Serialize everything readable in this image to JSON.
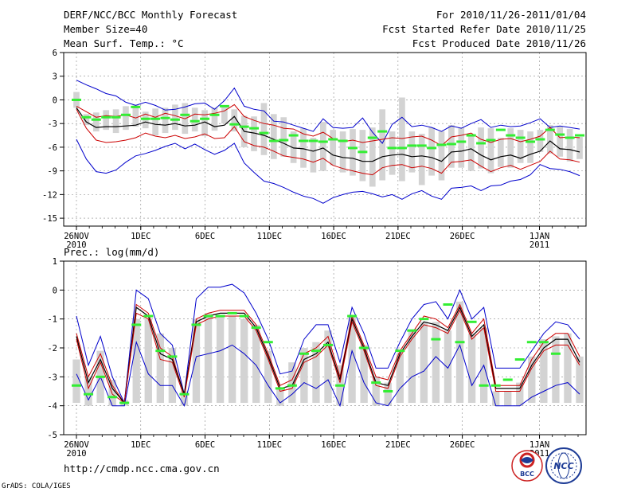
{
  "header": {
    "title": "DERF/NCC/BCC Monthly Forecast",
    "member": "Member Size=40",
    "variable": "Mean Surf. Temp.: °C",
    "period": "For 2010/11/26-2011/01/04",
    "started": "Fcst Started Refer Date 2010/11/25",
    "produced": "Fcst Produced Date 2010/11/26"
  },
  "footer": {
    "url": "http://cmdp.ncc.cma.gov.cn",
    "credit": "GrADS: COLA/IGES",
    "logo_bcc": "BCC",
    "logo_ncc": "NCC"
  },
  "colors": {
    "envelope": "#0000cc",
    "spread": "#cc0000",
    "mean": "#000000",
    "bars": "#d3d3d3",
    "marker": "#33ee33"
  },
  "chart_data": [
    {
      "type": "line",
      "title": "Mean Surf. Temp.: °C",
      "ylim": [
        -16,
        6
      ],
      "yticks": [
        6,
        3,
        0,
        -3,
        -6,
        -9,
        -12,
        -15
      ],
      "xlabels": [
        "26NOV",
        "1DEC",
        "6DEC",
        "11DEC",
        "16DEC",
        "21DEC",
        "26DEC",
        "1JAN"
      ],
      "xlabel_years": [
        "2010",
        "",
        "",
        "",
        "",
        "",
        "",
        "2011"
      ],
      "x_ticks_days": 40,
      "series": [
        {
          "name": "max",
          "values": [
            2.5,
            1.9,
            1.4,
            0.8,
            0.5,
            -0.3,
            -0.7,
            -0.3,
            -0.7,
            -1.3,
            -1.2,
            -0.9,
            -0.5,
            -0.4,
            -1.2,
            -0.1,
            1.5,
            -0.8,
            -1.2,
            -1.4,
            -2.7,
            -2.8,
            -3.2,
            -3.6,
            -4.0,
            -2.4,
            -3.5,
            -3.6,
            -3.5,
            -2.3,
            -4.1,
            -5.5,
            -3.1,
            -2.2,
            -3.4,
            -3.2,
            -3.5,
            -4.0,
            -3.3,
            -3.6,
            -3.0,
            -2.5,
            -3.5,
            -3.2,
            -3.4,
            -3.3,
            -2.9,
            -2.4,
            -3.5,
            -3.3,
            -3.5,
            -3.7
          ]
        },
        {
          "name": "upper",
          "values": [
            -0.8,
            -1.5,
            -2.2,
            -2.0,
            -2.1,
            -1.9,
            -2.3,
            -1.8,
            -2.2,
            -1.7,
            -2.0,
            -2.4,
            -1.8,
            -1.9,
            -1.7,
            -1.4,
            -0.6,
            -2.1,
            -2.6,
            -3.0,
            -3.2,
            -3.6,
            -3.7,
            -4.3,
            -4.6,
            -4.1,
            -4.9,
            -5.3,
            -5.1,
            -5.4,
            -5.2,
            -5.0,
            -4.8,
            -4.9,
            -4.7,
            -4.6,
            -5.1,
            -5.8,
            -4.7,
            -4.5,
            -4.2,
            -5.0,
            -5.4,
            -5.0,
            -4.9,
            -5.3,
            -5.0,
            -4.6,
            -3.5,
            -4.8,
            -4.7,
            -4.8
          ]
        },
        {
          "name": "mean",
          "values": [
            -1.0,
            -2.8,
            -3.5,
            -3.4,
            -3.4,
            -3.3,
            -3.2,
            -2.8,
            -3.1,
            -3.2,
            -3.0,
            -3.3,
            -3.2,
            -2.8,
            -3.4,
            -3.2,
            -2.1,
            -4.0,
            -4.2,
            -4.5,
            -5.0,
            -5.5,
            -6.1,
            -6.2,
            -6.5,
            -6.1,
            -7.0,
            -7.3,
            -7.4,
            -7.8,
            -7.8,
            -7.2,
            -7.0,
            -6.9,
            -7.2,
            -7.1,
            -7.3,
            -7.8,
            -6.6,
            -6.5,
            -6.2,
            -7.0,
            -7.6,
            -7.2,
            -7.0,
            -7.4,
            -6.9,
            -6.5,
            -5.2,
            -6.2,
            -6.3,
            -6.6
          ]
        },
        {
          "name": "lower",
          "values": [
            -1.2,
            -3.6,
            -5.1,
            -5.4,
            -5.3,
            -5.1,
            -4.8,
            -4.2,
            -4.6,
            -4.8,
            -4.5,
            -4.9,
            -4.7,
            -4.3,
            -4.9,
            -4.8,
            -3.4,
            -5.3,
            -5.8,
            -6.0,
            -6.5,
            -7.1,
            -7.3,
            -7.5,
            -7.9,
            -7.4,
            -8.3,
            -8.7,
            -9.0,
            -9.3,
            -9.5,
            -8.6,
            -8.3,
            -8.2,
            -8.6,
            -8.4,
            -8.7,
            -9.3,
            -7.9,
            -7.8,
            -7.6,
            -8.4,
            -9.1,
            -8.6,
            -8.3,
            -8.8,
            -8.3,
            -7.8,
            -6.5,
            -7.5,
            -7.6,
            -7.9
          ]
        },
        {
          "name": "min",
          "values": [
            -5.0,
            -7.5,
            -9.1,
            -9.3,
            -8.9,
            -7.9,
            -7.1,
            -6.8,
            -6.4,
            -5.9,
            -5.5,
            -6.2,
            -5.6,
            -6.3,
            -6.9,
            -6.4,
            -5.5,
            -8.0,
            -9.2,
            -10.3,
            -10.6,
            -11.1,
            -11.7,
            -12.2,
            -12.5,
            -13.1,
            -12.4,
            -12.0,
            -11.7,
            -11.6,
            -11.9,
            -12.3,
            -12.0,
            -12.6,
            -11.9,
            -11.5,
            -12.2,
            -12.6,
            -11.2,
            -11.1,
            -10.9,
            -11.5,
            -10.9,
            -10.8,
            -10.3,
            -10.1,
            -9.5,
            -8.2,
            -8.7,
            -8.8,
            -9.1,
            -9.6
          ]
        }
      ],
      "markers": [
        0.0,
        -2.2,
        -2.5,
        -2.2,
        -2.2,
        -1.9,
        -0.9,
        -2.4,
        -2.4,
        -2.3,
        -2.5,
        -1.9,
        -2.7,
        -2.4,
        -1.9,
        -0.8,
        -3.1,
        -3.4,
        -3.6,
        -4.2,
        -5.2,
        -5.1,
        -4.5,
        -5.2,
        -5.2,
        -5.3,
        -5.0,
        -5.2,
        -6.1,
        -6.6,
        -4.8,
        -4.0,
        -6.1,
        -6.1,
        -5.8,
        -5.8,
        -6.1,
        -5.7,
        -5.6,
        -5.3,
        -4.5,
        -5.5,
        -5.1,
        -3.8,
        -4.5,
        -4.8,
        -5.3,
        -5.0,
        -3.8,
        -4.4,
        -4.8,
        -4.5
      ],
      "bars": [
        [
          -1.0,
          1.0
        ],
        [
          -3.2,
          -1.8
        ],
        [
          -4.0,
          -1.6
        ],
        [
          -3.8,
          -1.3
        ],
        [
          -4.2,
          -1.2
        ],
        [
          -3.8,
          -0.8
        ],
        [
          -3.4,
          -0.6
        ],
        [
          -3.6,
          -1.5
        ],
        [
          -4.5,
          -1.1
        ],
        [
          -4.2,
          -1.0
        ],
        [
          -3.8,
          -0.6
        ],
        [
          -4.3,
          -0.4
        ],
        [
          -4.0,
          -1.0
        ],
        [
          -4.6,
          -1.3
        ],
        [
          -3.9,
          -1.0
        ],
        [
          -3.0,
          -0.7
        ],
        [
          -4.0,
          -1.2
        ],
        [
          -6.0,
          -2.0
        ],
        [
          -6.5,
          -2.1
        ],
        [
          -7.0,
          -0.4
        ],
        [
          -7.5,
          -1.8
        ],
        [
          -7.2,
          -2.2
        ],
        [
          -8.0,
          -4.0
        ],
        [
          -8.6,
          -3.6
        ],
        [
          -9.2,
          -4.8
        ],
        [
          -9.0,
          -2.8
        ],
        [
          -8.3,
          -3.8
        ],
        [
          -9.2,
          -4.0
        ],
        [
          -9.6,
          -3.7
        ],
        [
          -10.3,
          -3.8
        ],
        [
          -11.0,
          -3.5
        ],
        [
          -10.2,
          -1.2
        ],
        [
          -9.5,
          -4.0
        ],
        [
          -10.3,
          0.3
        ],
        [
          -9.2,
          -4.0
        ],
        [
          -10.8,
          -4.3
        ],
        [
          -9.6,
          -3.5
        ],
        [
          -10.2,
          -4.0
        ],
        [
          -8.6,
          -3.2
        ],
        [
          -8.6,
          -3.5
        ],
        [
          -9.0,
          -4.6
        ],
        [
          -8.7,
          -3.5
        ],
        [
          -9.3,
          -3.6
        ],
        [
          -8.5,
          -4.8
        ],
        [
          -8.6,
          -3.6
        ],
        [
          -8.0,
          -3.8
        ],
        [
          -8.0,
          -4.0
        ],
        [
          -6.6,
          -3.8
        ],
        [
          -6.8,
          -3.2
        ],
        [
          -7.2,
          -3.4
        ],
        [
          -7.8,
          -3.7
        ],
        [
          -7.5,
          -4.7
        ]
      ]
    },
    {
      "type": "line",
      "title": "Prec.: log(mm/d)",
      "ylim": [
        -5,
        1
      ],
      "yticks": [
        1,
        0,
        -1,
        -2,
        -3,
        -4,
        -5
      ],
      "xlabels": [
        "26NOV",
        "1DEC",
        "6DEC",
        "11DEC",
        "16DEC",
        "21DEC",
        "26DEC",
        "1JAN"
      ],
      "xlabel_years": [
        "2010",
        "",
        "",
        "",
        "",
        "",
        "",
        "2011"
      ],
      "x_ticks_days": 40,
      "series": [
        {
          "name": "max",
          "values": [
            -0.9,
            -2.6,
            -1.6,
            -3.0,
            -3.9,
            0.0,
            -0.3,
            -1.5,
            -1.9,
            -3.6,
            -0.3,
            0.1,
            0.1,
            0.2,
            -0.1,
            -0.8,
            -1.7,
            -2.9,
            -2.8,
            -1.7,
            -1.2,
            -1.2,
            -2.5,
            -0.6,
            -1.5,
            -2.7,
            -2.7,
            -1.8,
            -1.0,
            -0.5,
            -0.4,
            -1.0,
            0.0,
            -1.0,
            -0.6,
            -2.7,
            -2.7,
            -2.7,
            -2.1,
            -1.5,
            -1.1,
            -1.2,
            -1.7
          ]
        },
        {
          "name": "upper",
          "values": [
            -1.5,
            -3.0,
            -2.2,
            -3.3,
            -3.9,
            -0.5,
            -0.8,
            -2.0,
            -2.3,
            -3.6,
            -1.0,
            -0.8,
            -0.7,
            -0.7,
            -0.7,
            -1.2,
            -2.2,
            -3.3,
            -3.1,
            -2.2,
            -2.0,
            -1.6,
            -3.0,
            -0.9,
            -1.9,
            -3.0,
            -3.1,
            -2.1,
            -1.5,
            -0.9,
            -1.0,
            -1.3,
            -0.5,
            -1.5,
            -1.0,
            -3.3,
            -3.3,
            -3.3,
            -2.4,
            -1.8,
            -1.5,
            -1.5,
            -2.3
          ]
        },
        {
          "name": "mean",
          "values": [
            -1.6,
            -3.2,
            -2.4,
            -3.4,
            -3.9,
            -0.6,
            -0.9,
            -2.2,
            -2.4,
            -3.6,
            -1.1,
            -0.9,
            -0.8,
            -0.8,
            -0.8,
            -1.3,
            -2.3,
            -3.4,
            -3.3,
            -2.4,
            -2.2,
            -1.8,
            -3.1,
            -1.0,
            -2.0,
            -3.2,
            -3.3,
            -2.2,
            -1.6,
            -1.1,
            -1.2,
            -1.4,
            -0.6,
            -1.6,
            -1.2,
            -3.4,
            -3.4,
            -3.4,
            -2.6,
            -2.0,
            -1.7,
            -1.7,
            -2.5
          ]
        },
        {
          "name": "lower",
          "values": [
            -1.7,
            -3.4,
            -2.5,
            -3.6,
            -3.9,
            -0.8,
            -1.0,
            -2.4,
            -2.5,
            -3.7,
            -1.2,
            -1.0,
            -0.9,
            -0.9,
            -0.9,
            -1.4,
            -2.4,
            -3.5,
            -3.4,
            -2.5,
            -2.3,
            -1.9,
            -3.2,
            -1.1,
            -2.1,
            -3.3,
            -3.4,
            -2.3,
            -1.7,
            -1.2,
            -1.3,
            -1.5,
            -0.7,
            -1.7,
            -1.3,
            -3.5,
            -3.5,
            -3.5,
            -2.7,
            -2.1,
            -1.9,
            -1.9,
            -2.6
          ]
        },
        {
          "name": "min",
          "values": [
            -2.9,
            -3.8,
            -3.0,
            -4.0,
            -4.0,
            -1.8,
            -2.9,
            -3.3,
            -3.3,
            -4.0,
            -2.3,
            -2.2,
            -2.1,
            -1.9,
            -2.2,
            -2.6,
            -3.3,
            -3.9,
            -3.6,
            -3.2,
            -3.4,
            -3.1,
            -4.0,
            -2.1,
            -3.2,
            -3.9,
            -4.0,
            -3.4,
            -3.0,
            -2.8,
            -2.3,
            -2.7,
            -1.9,
            -3.3,
            -2.6,
            -4.0,
            -4.0,
            -4.0,
            -3.7,
            -3.5,
            -3.3,
            -3.2,
            -3.6
          ]
        }
      ],
      "markers": [
        -3.3,
        -3.6,
        -3.0,
        -3.7,
        -3.9,
        -1.2,
        -0.9,
        -2.1,
        -2.3,
        -3.6,
        -1.2,
        -0.9,
        -0.9,
        -0.8,
        -0.9,
        -1.3,
        -1.8,
        -3.4,
        -3.3,
        -2.2,
        -2.1,
        -1.9,
        -3.3,
        -0.9,
        -2.0,
        -3.2,
        -3.5,
        -2.1,
        -1.4,
        -1.0,
        -1.7,
        -0.5,
        -1.8,
        -1.1,
        -3.3,
        -3.3,
        -3.1,
        -2.4,
        -1.8,
        -1.8,
        -2.2
      ],
      "bars": [
        [
          -3.9,
          -2.4
        ],
        [
          -4.0,
          -3.0
        ],
        [
          -3.9,
          -2.1
        ],
        [
          -4.0,
          -3.1
        ],
        [
          -4.0,
          -3.8
        ],
        [
          -3.9,
          -1.0
        ],
        [
          -3.9,
          -1.0
        ],
        [
          -3.9,
          -1.5
        ],
        [
          -3.9,
          -2.0
        ],
        [
          -4.0,
          -3.5
        ],
        [
          -3.9,
          -1.0
        ],
        [
          -3.9,
          -0.8
        ],
        [
          -3.9,
          -0.9
        ],
        [
          -3.9,
          -0.9
        ],
        [
          -3.9,
          -1.0
        ],
        [
          -3.9,
          -1.2
        ],
        [
          -3.9,
          -2.1
        ],
        [
          -4.0,
          -3.4
        ],
        [
          -3.9,
          -2.5
        ],
        [
          -3.9,
          -2.0
        ],
        [
          -3.9,
          -1.8
        ],
        [
          -3.9,
          -1.4
        ],
        [
          -4.0,
          -2.6
        ],
        [
          -3.9,
          -0.9
        ],
        [
          -3.9,
          -1.9
        ],
        [
          -4.0,
          -3.0
        ],
        [
          -4.0,
          -3.2
        ],
        [
          -3.9,
          -2.2
        ],
        [
          -3.9,
          -1.4
        ],
        [
          -3.9,
          -1.1
        ],
        [
          -3.9,
          -1.1
        ],
        [
          -3.9,
          -1.4
        ],
        [
          -3.9,
          -0.4
        ],
        [
          -3.9,
          -1.5
        ],
        [
          -3.9,
          -1.3
        ],
        [
          -4.0,
          -3.5
        ],
        [
          -4.0,
          -3.5
        ],
        [
          -4.0,
          -3.2
        ],
        [
          -3.9,
          -2.3
        ],
        [
          -3.9,
          -1.7
        ],
        [
          -3.9,
          -1.6
        ],
        [
          -3.9,
          -1.5
        ],
        [
          -3.9,
          -2.3
        ]
      ]
    }
  ]
}
